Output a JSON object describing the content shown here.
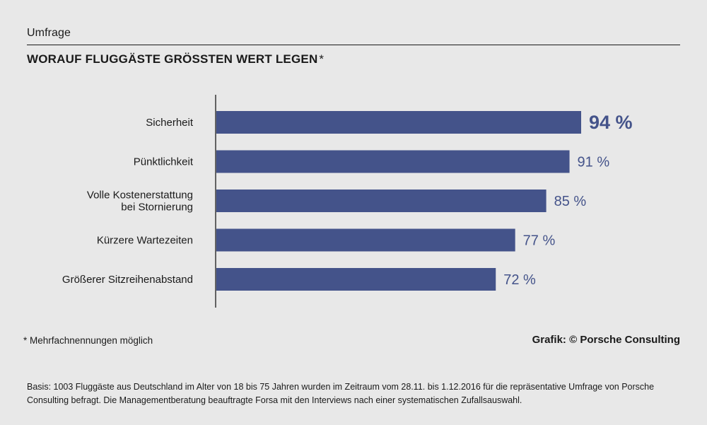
{
  "header": {
    "kicker": "Umfrage",
    "title": "WORAUF FLUGGÄSTE GRÖSSTEN WERT LEGEN",
    "title_mark": "*"
  },
  "chart_data": {
    "type": "bar",
    "orientation": "horizontal",
    "categories": [
      [
        "Sicherheit"
      ],
      [
        "Pünktlichkeit"
      ],
      [
        "Volle Kostenerstattung",
        "bei Stornierung"
      ],
      [
        "Kürzere Wartezeiten"
      ],
      [
        "Größerer Sitzreihenabstand"
      ]
    ],
    "values": [
      94,
      91,
      85,
      77,
      72
    ],
    "value_labels": [
      "94 %",
      "91 %",
      "85 %",
      "77 %",
      "72 %"
    ],
    "highlight_index": 0,
    "xlim": [
      0,
      100
    ],
    "grid": false,
    "colors": {
      "bar": "#44538a",
      "label": "#44538a",
      "axis": "#1a1a1a"
    }
  },
  "footer": {
    "footnote": "* Mehrfachnennungen möglich",
    "credit": "Grafik: © Porsche Consulting",
    "basis": "Basis: 1003 Fluggäste aus Deutschland im Alter von 18 bis 75 Jahren wurden im Zeitraum vom 28.11. bis 1.12.2016 für die repräsentative Umfrage von Porsche Consulting befragt. Die Managementberatung beauftragte Forsa mit den Interviews nach einer systematischen Zufallsauswahl."
  }
}
